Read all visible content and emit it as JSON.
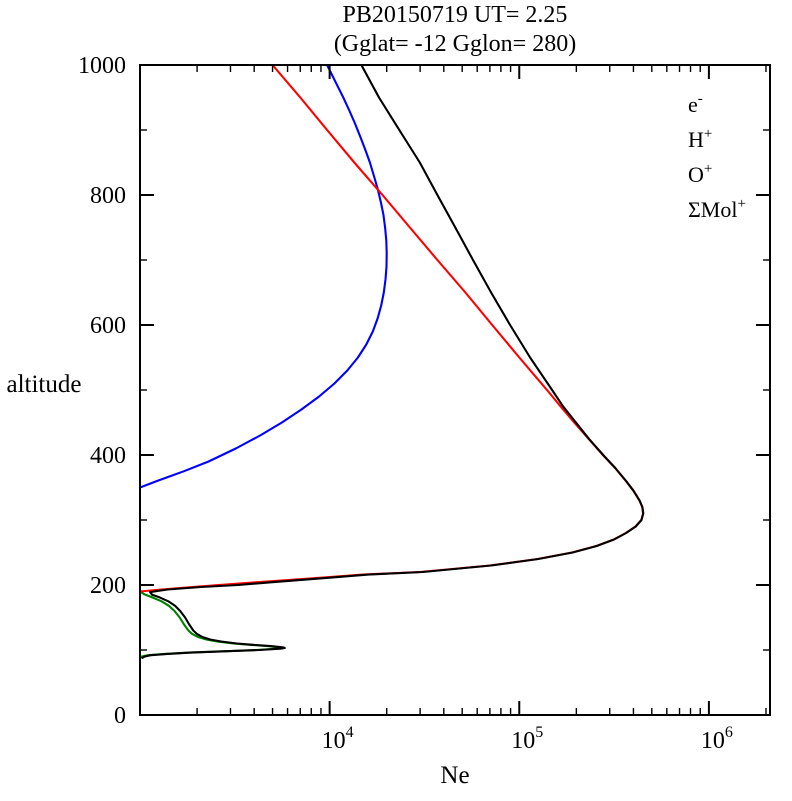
{
  "page": {
    "background": "#ffffff"
  },
  "chart_data": {
    "type": "line",
    "title": "PB20150719  UT=  2.25",
    "subtitle": "(Gglat= -12  Gglon=  280)",
    "xlabel": "Ne",
    "ylabel": "altitude",
    "x_scale": "log",
    "xlim": [
      1000,
      2100000
    ],
    "ylim": [
      0,
      1000
    ],
    "x_major_ticks": [
      10000,
      100000,
      1000000
    ],
    "x_tick_labels": [
      {
        "base": "10",
        "exp": "4"
      },
      {
        "base": "10",
        "exp": "5"
      },
      {
        "base": "10",
        "exp": "6"
      }
    ],
    "y_major_ticks": [
      0,
      200,
      400,
      600,
      800,
      1000
    ],
    "y_minor_ticks": [
      100,
      300,
      500,
      700,
      900
    ],
    "grid": false,
    "legend_position": "top-right-inside",
    "legend": [
      {
        "name": "electron-density",
        "base": "e",
        "sup": "-",
        "color": "#000000"
      },
      {
        "name": "hydrogen-ion",
        "base": "H",
        "sup": "+",
        "color": "#0000ff"
      },
      {
        "name": "oxygen-ion",
        "base": "O",
        "sup": "+",
        "color": "#ff0000"
      },
      {
        "name": "molecular-ions",
        "base": "ΣMol",
        "sup": "+",
        "color": "#008000"
      }
    ],
    "series": [
      {
        "name": "Mol+",
        "color": "#008000",
        "points": [
          [
            88,
            1000
          ],
          [
            90,
            1020
          ],
          [
            92,
            1100
          ],
          [
            94,
            1350
          ],
          [
            96,
            1800
          ],
          [
            98,
            2700
          ],
          [
            100,
            4100
          ],
          [
            102,
            5300
          ],
          [
            103,
            5600
          ],
          [
            104,
            5500
          ],
          [
            106,
            4700
          ],
          [
            108,
            3800
          ],
          [
            110,
            3100
          ],
          [
            113,
            2550
          ],
          [
            116,
            2250
          ],
          [
            120,
            2020
          ],
          [
            125,
            1880
          ],
          [
            130,
            1800
          ],
          [
            140,
            1700
          ],
          [
            150,
            1620
          ],
          [
            160,
            1520
          ],
          [
            168,
            1420
          ],
          [
            175,
            1300
          ],
          [
            181,
            1160
          ],
          [
            186,
            1050
          ],
          [
            190,
            1005
          ],
          [
            192,
            1000
          ]
        ]
      },
      {
        "name": "H+",
        "color": "#0000ff",
        "points": [
          [
            350,
            1000
          ],
          [
            360,
            1230
          ],
          [
            375,
            1700
          ],
          [
            390,
            2300
          ],
          [
            410,
            3200
          ],
          [
            430,
            4300
          ],
          [
            450,
            5600
          ],
          [
            470,
            7100
          ],
          [
            490,
            8800
          ],
          [
            510,
            10600
          ],
          [
            530,
            12400
          ],
          [
            550,
            14100
          ],
          [
            570,
            15600
          ],
          [
            590,
            16900
          ],
          [
            610,
            17900
          ],
          [
            630,
            18700
          ],
          [
            650,
            19300
          ],
          [
            670,
            19700
          ],
          [
            690,
            19950
          ],
          [
            710,
            20000
          ],
          [
            730,
            19900
          ],
          [
            750,
            19600
          ],
          [
            770,
            19200
          ],
          [
            790,
            18600
          ],
          [
            810,
            17900
          ],
          [
            830,
            17100
          ],
          [
            850,
            16300
          ],
          [
            870,
            15400
          ],
          [
            890,
            14500
          ],
          [
            910,
            13600
          ],
          [
            930,
            12700
          ],
          [
            950,
            11800
          ],
          [
            975,
            10700
          ],
          [
            1000,
            9700
          ]
        ]
      },
      {
        "name": "O+",
        "color": "#ff0000",
        "points": [
          [
            190,
            1000
          ],
          [
            193,
            1300
          ],
          [
            196,
            1750
          ],
          [
            200,
            2600
          ],
          [
            204,
            4000
          ],
          [
            208,
            6300
          ],
          [
            212,
            9800
          ],
          [
            216,
            15000
          ],
          [
            220,
            30000
          ],
          [
            230,
            70000
          ],
          [
            240,
            125000
          ],
          [
            250,
            190000
          ],
          [
            260,
            255000
          ],
          [
            270,
            315000
          ],
          [
            280,
            365000
          ],
          [
            290,
            410000
          ],
          [
            300,
            440000
          ],
          [
            310,
            450000
          ],
          [
            320,
            445000
          ],
          [
            330,
            430000
          ],
          [
            345,
            400000
          ],
          [
            360,
            365000
          ],
          [
            380,
            320000
          ],
          [
            400,
            276000
          ],
          [
            425,
            232000
          ],
          [
            450,
            195000
          ],
          [
            475,
            165000
          ],
          [
            500,
            140000
          ],
          [
            550,
            100000
          ],
          [
            600,
            72000
          ],
          [
            650,
            52000
          ],
          [
            700,
            37000
          ],
          [
            750,
            26500
          ],
          [
            800,
            19000
          ],
          [
            850,
            13500
          ],
          [
            900,
            9700
          ],
          [
            950,
            7000
          ],
          [
            1000,
            5000
          ]
        ]
      },
      {
        "name": "e-",
        "color": "#000000",
        "points": [
          [
            88,
            1030
          ],
          [
            90,
            1060
          ],
          [
            92,
            1140
          ],
          [
            94,
            1400
          ],
          [
            96,
            1870
          ],
          [
            98,
            2800
          ],
          [
            100,
            4250
          ],
          [
            102,
            5500
          ],
          [
            103,
            5800
          ],
          [
            104,
            5700
          ],
          [
            106,
            4900
          ],
          [
            108,
            3950
          ],
          [
            110,
            3250
          ],
          [
            113,
            2680
          ],
          [
            116,
            2360
          ],
          [
            120,
            2130
          ],
          [
            125,
            1990
          ],
          [
            130,
            1910
          ],
          [
            140,
            1810
          ],
          [
            150,
            1730
          ],
          [
            160,
            1630
          ],
          [
            168,
            1530
          ],
          [
            175,
            1410
          ],
          [
            181,
            1270
          ],
          [
            185,
            1160
          ],
          [
            189,
            1130
          ],
          [
            193,
            1400
          ],
          [
            197,
            2100
          ],
          [
            200,
            3300
          ],
          [
            204,
            4800
          ],
          [
            208,
            7200
          ],
          [
            212,
            10800
          ],
          [
            216,
            16000
          ],
          [
            218,
            22000
          ],
          [
            220,
            31000
          ],
          [
            230,
            71000
          ],
          [
            240,
            126000
          ],
          [
            250,
            191000
          ],
          [
            260,
            256000
          ],
          [
            270,
            316000
          ],
          [
            280,
            366000
          ],
          [
            290,
            411000
          ],
          [
            300,
            441000
          ],
          [
            310,
            451000
          ],
          [
            320,
            446000
          ],
          [
            330,
            431000
          ],
          [
            345,
            401000
          ],
          [
            360,
            366000
          ],
          [
            380,
            321000
          ],
          [
            400,
            277000
          ],
          [
            425,
            233000
          ],
          [
            450,
            199000
          ],
          [
            475,
            170000
          ],
          [
            500,
            149000
          ],
          [
            550,
            114000
          ],
          [
            600,
            89500
          ],
          [
            650,
            71000
          ],
          [
            700,
            57000
          ],
          [
            750,
            46000
          ],
          [
            800,
            37000
          ],
          [
            850,
            29900
          ],
          [
            900,
            23300
          ],
          [
            950,
            18200
          ],
          [
            1000,
            14700
          ]
        ]
      }
    ]
  }
}
